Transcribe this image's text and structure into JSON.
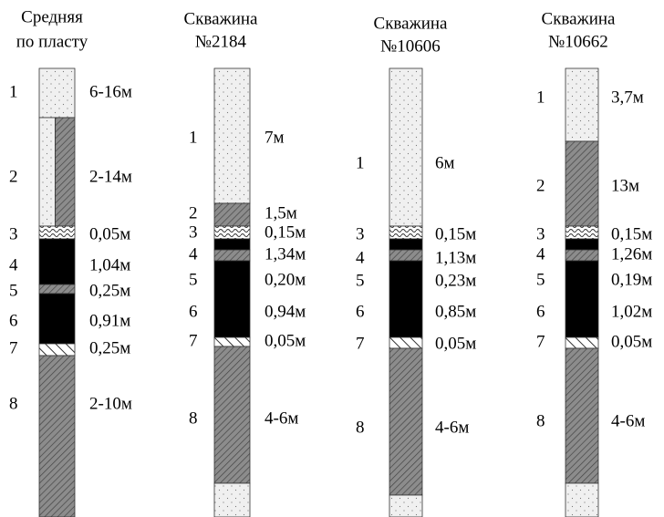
{
  "columns": [
    {
      "title": [
        "Средняя",
        "по пласту"
      ],
      "layers": [
        {
          "n": "1",
          "thickness": "6-16м"
        },
        {
          "n": "2",
          "thickness": "2-14м"
        },
        {
          "n": "3",
          "thickness": "0,05м"
        },
        {
          "n": "4",
          "thickness": "1,04м"
        },
        {
          "n": "5",
          "thickness": "0,25м"
        },
        {
          "n": "6",
          "thickness": "0,91м"
        },
        {
          "n": "7",
          "thickness": "0,25м"
        },
        {
          "n": "8",
          "thickness": "2-10м"
        }
      ]
    },
    {
      "title": [
        "Скважина",
        "№2184"
      ],
      "layers": [
        {
          "n": "1",
          "thickness": "7м"
        },
        {
          "n": "2",
          "thickness": "1,5м"
        },
        {
          "n": "3",
          "thickness": "0,15м"
        },
        {
          "n": "4",
          "thickness": "1,34м"
        },
        {
          "n": "5",
          "thickness": "0,20м"
        },
        {
          "n": "6",
          "thickness": "0,94м"
        },
        {
          "n": "7",
          "thickness": "0,05м"
        },
        {
          "n": "8",
          "thickness": "4-6м"
        }
      ]
    },
    {
      "title": [
        "Скважина",
        "№10606"
      ],
      "layers": [
        {
          "n": "1",
          "thickness": "6м"
        },
        {
          "n": "3",
          "thickness": "0,15м"
        },
        {
          "n": "4",
          "thickness": "1,13м"
        },
        {
          "n": "5",
          "thickness": "0,23м"
        },
        {
          "n": "6",
          "thickness": "0,85м"
        },
        {
          "n": "7",
          "thickness": "0,05м"
        },
        {
          "n": "8",
          "thickness": "4-6м"
        }
      ]
    },
    {
      "title": [
        "Скважина",
        "№10662"
      ],
      "layers": [
        {
          "n": "1",
          "thickness": "3,7м"
        },
        {
          "n": "2",
          "thickness": "13м"
        },
        {
          "n": "3",
          "thickness": "0,15м"
        },
        {
          "n": "4",
          "thickness": "1,26м"
        },
        {
          "n": "5",
          "thickness": "0,19м"
        },
        {
          "n": "6",
          "thickness": "1,02м"
        },
        {
          "n": "7",
          "thickness": "0,05м"
        },
        {
          "n": "8",
          "thickness": "4-6м"
        }
      ]
    }
  ]
}
